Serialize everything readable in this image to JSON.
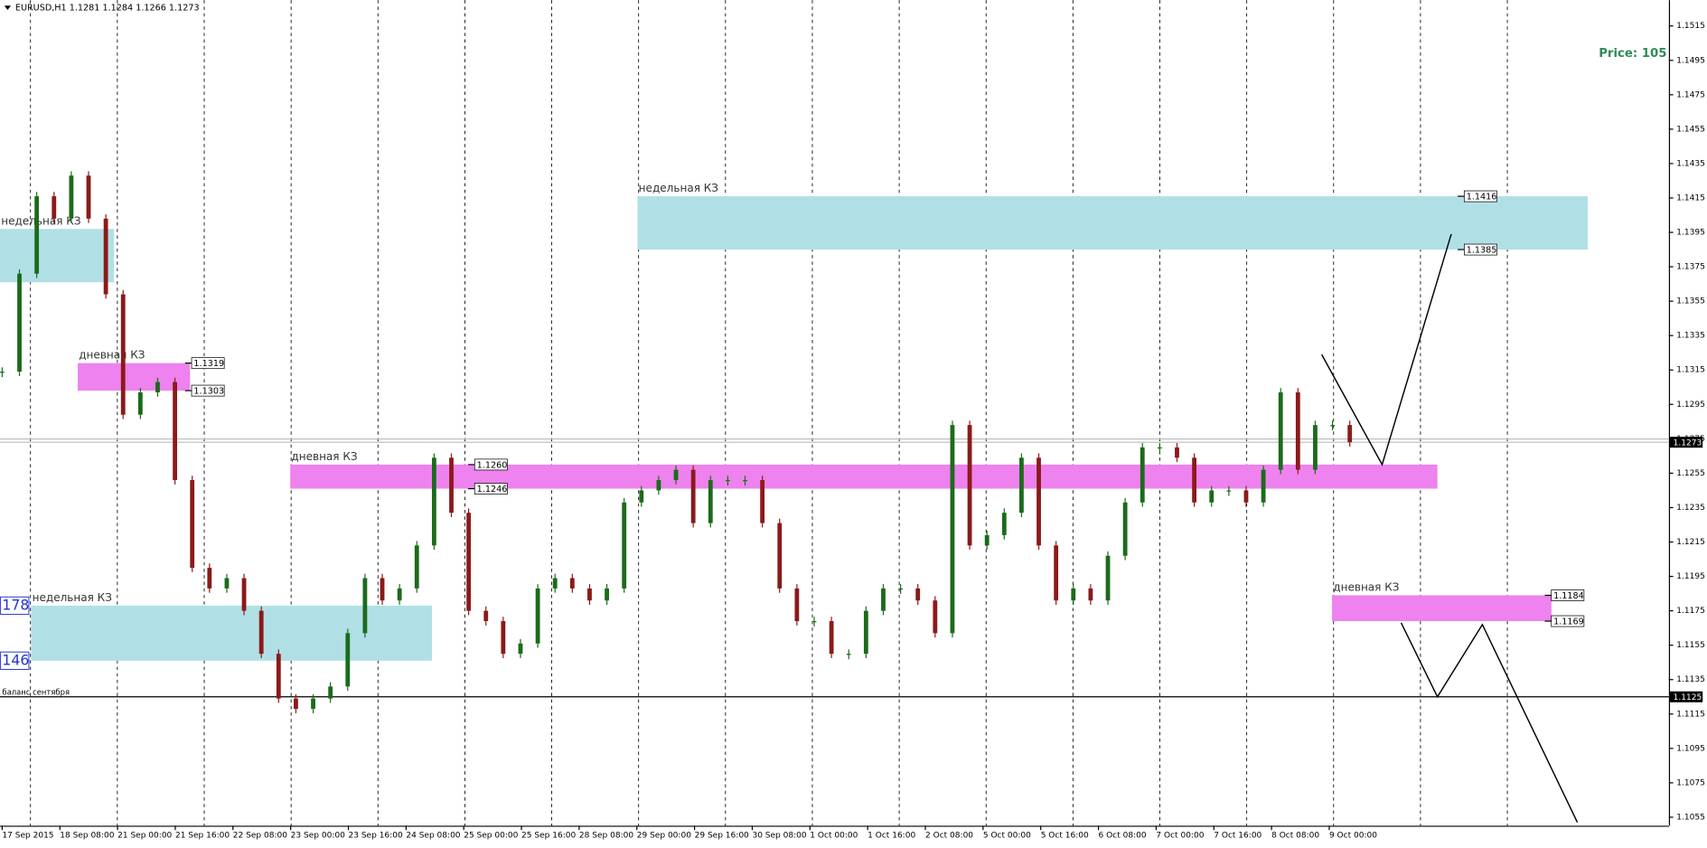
{
  "header": "EURUSD,H1  1.1281 1.1284 1.1266 1.1273",
  "price_info": "Price: 105",
  "chart_data": {
    "type": "candlestick",
    "closes": [
      1.1314,
      1.1371,
      1.1416,
      1.1403,
      1.1428,
      1.1403,
      1.1359,
      1.1289,
      1.1302,
      1.1308,
      1.1251,
      1.12,
      1.1188,
      1.1194,
      1.1175,
      1.115,
      1.1124,
      1.1118,
      1.1124,
      1.1131,
      1.1162,
      1.1194,
      1.1181,
      1.1188,
      1.1213,
      1.1264,
      1.1232,
      1.1175,
      1.1169,
      1.115,
      1.1156,
      1.1188,
      1.1194,
      1.1188,
      1.1181,
      1.1188,
      1.1238,
      1.1245,
      1.1251,
      1.1257,
      1.1226,
      1.1251,
      1.1251,
      1.1251,
      1.1226,
      1.1188,
      1.1169,
      1.1169,
      1.115,
      1.115,
      1.1175,
      1.1188,
      1.1188,
      1.1181,
      1.1162,
      1.1283,
      1.1213,
      1.1219,
      1.1232,
      1.1264,
      1.1213,
      1.1181,
      1.1188,
      1.1181,
      1.1207,
      1.1238,
      1.127,
      1.127,
      1.1264,
      1.1238,
      1.1245,
      1.1245,
      1.1238,
      1.1257,
      1.1302,
      1.1257,
      1.1283,
      1.1283,
      1.1273
    ],
    "up_color": "#1b6b1b",
    "down_color": "#8b1a1a",
    "time_labels": [
      "17 Sep 2015",
      "18 Sep 08:00",
      "21 Sep 00:00",
      "21 Sep 16:00",
      "22 Sep 08:00",
      "23 Sep 00:00",
      "23 Sep 16:00",
      "24 Sep 08:00",
      "25 Sep 00:00",
      "25 Sep 16:00",
      "28 Sep 08:00",
      "29 Sep 00:00",
      "29 Sep 16:00",
      "30 Sep 08:00",
      "1 Oct 00:00",
      "1 Oct 16:00",
      "2 Oct 08:00",
      "5 Oct 00:00",
      "5 Oct 16:00",
      "6 Oct 08:00",
      "7 Oct 00:00",
      "7 Oct 16:00",
      "8 Oct 08:00",
      "9 Oct 00:00"
    ],
    "ylim": [
      1.1045,
      1.153
    ],
    "yticks": [
      1.1515,
      1.1495,
      1.1475,
      1.1455,
      1.1435,
      1.1415,
      1.1395,
      1.1375,
      1.1355,
      1.1335,
      1.1315,
      1.1295,
      1.1275,
      1.1255,
      1.1235,
      1.1215,
      1.1195,
      1.1175,
      1.1155,
      1.1135,
      1.1115,
      1.1095,
      1.1075,
      1.1055
    ],
    "current_price": 1.1273,
    "zones": [
      {
        "label": "недельная КЗ",
        "color": "#b0e0e6",
        "start": 0,
        "end": 6.6,
        "top": 1.1397,
        "bottom": 1.1366
      },
      {
        "label": "дневная КЗ",
        "color": "#ee82ee",
        "start": 4.5,
        "end": 11,
        "top": 1.1319,
        "bottom": 1.1303
      },
      {
        "label": "дневная КЗ",
        "color": "#ee82ee",
        "start": 16.8,
        "end": 83.2,
        "top": 1.126,
        "bottom": 1.1246,
        "top_label": "1.1260"
      },
      {
        "label": "недельная КЗ",
        "color": "#b0e0e6",
        "start": 36.9,
        "end": 91.9,
        "top": 1.1416,
        "bottom": 1.1385
      },
      {
        "label": "недельная КЗ",
        "color": "#b0e0e6",
        "start": 1.8,
        "end": 25,
        "top": 1.1178,
        "bottom": 1.1146,
        "top_label": "178",
        "bottom_label": "146"
      },
      {
        "label": "дневная КЗ",
        "color": "#ee82ee",
        "start": 77.1,
        "end": 89.8,
        "top": 1.1184,
        "bottom": 1.1169
      }
    ],
    "level": {
      "label": "баланс сентября",
      "value": 1.1125
    },
    "forecast_lines": [
      {
        "x": [
          76.5,
          80,
          84
        ],
        "values": [
          1.1324,
          1.126,
          1.1394
        ]
      },
      {
        "x": [
          81.1,
          83.2,
          85.8,
          91.3
        ],
        "values": [
          1.1168,
          1.1125,
          1.1167,
          1.1052
        ]
      }
    ]
  }
}
